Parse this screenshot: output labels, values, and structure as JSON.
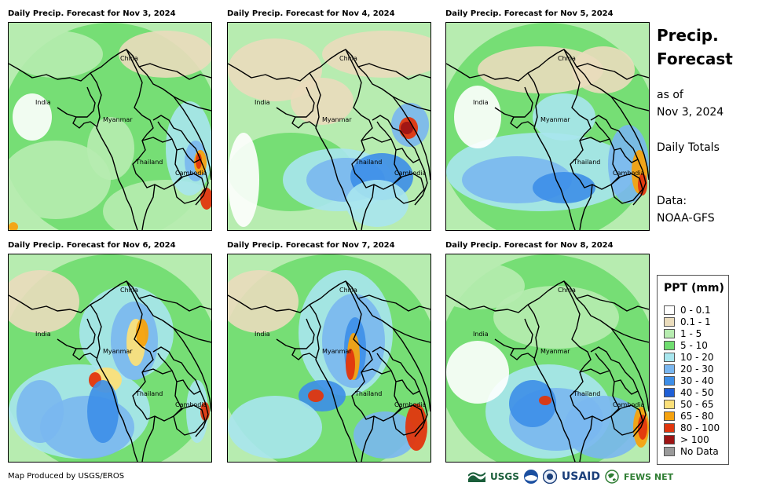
{
  "panels": [
    {
      "title": "Daily Precip. Forecast for Nov 3, 2024",
      "day": "nov3"
    },
    {
      "title": "Daily Precip. Forecast for Nov 4, 2024",
      "day": "nov4"
    },
    {
      "title": "Daily Precip. Forecast for Nov 5, 2024",
      "day": "nov5"
    },
    {
      "title": "Daily Precip. Forecast for Nov 6, 2024",
      "day": "nov6"
    },
    {
      "title": "Daily Precip. Forecast for Nov 7, 2024",
      "day": "nov7"
    },
    {
      "title": "Daily Precip. Forecast for Nov 8, 2024",
      "day": "nov8"
    }
  ],
  "map_labels": {
    "china": "China",
    "india": "India",
    "myanmar": "Myanmar",
    "thailand": "Thailand",
    "cambodia": "Cambodia"
  },
  "side": {
    "title_line1": "Precip.",
    "title_line2": "Forecast",
    "asof_line1": "as of",
    "asof_line2": "Nov 3, 2024",
    "totals": "Daily Totals",
    "data_line1": "Data:",
    "data_line2": "NOAA-GFS"
  },
  "legend": {
    "title": "PPT (mm)",
    "items": [
      {
        "label": "0 - 0.1",
        "color": "#ffffff"
      },
      {
        "label": "0.1 - 1",
        "color": "#eadcbc"
      },
      {
        "label": "1 - 5",
        "color": "#b7ecb0"
      },
      {
        "label": "5 - 10",
        "color": "#6fdd6f"
      },
      {
        "label": "10 - 20",
        "color": "#a8e6ee"
      },
      {
        "label": "20 - 30",
        "color": "#7ab7f0"
      },
      {
        "label": "30 - 40",
        "color": "#3d8ee8"
      },
      {
        "label": "40 - 50",
        "color": "#1f5fd6"
      },
      {
        "label": "50 - 65",
        "color": "#fbe07a"
      },
      {
        "label": "65 - 80",
        "color": "#f5a20f"
      },
      {
        "label": "80 - 100",
        "color": "#e0360e"
      },
      {
        "label": "> 100",
        "color": "#9e1414"
      },
      {
        "label": "No Data",
        "color": "#9a9a9a"
      }
    ]
  },
  "credit": "Map Produced by USGS/EROS",
  "logos": {
    "usgs": "USGS",
    "usaid": "USAID",
    "fewsnet": "FEWS NET"
  }
}
